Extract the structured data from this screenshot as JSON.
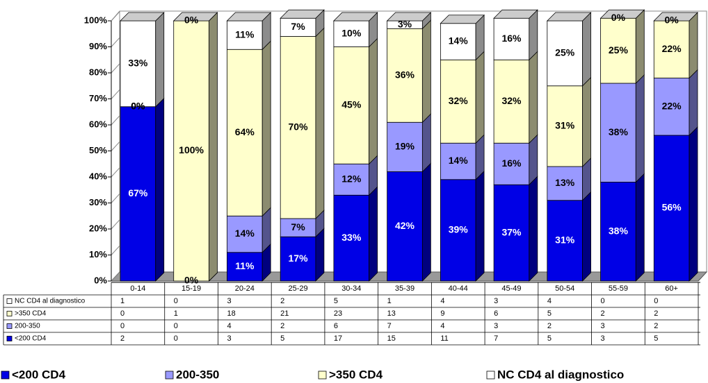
{
  "chart_data": {
    "type": "stacked_bar_3d",
    "categories": [
      "0-14",
      "15-19",
      "20-24",
      "25-29",
      "30-34",
      "35-39",
      "40-44",
      "45-49",
      "50-54",
      "55-59",
      "60+"
    ],
    "series": [
      {
        "name": "<200 CD4",
        "color": "#0000e6",
        "values": [
          67,
          0,
          11,
          17,
          33,
          42,
          39,
          37,
          31,
          38,
          56
        ],
        "value_labels": [
          "67%",
          "0%",
          "11%",
          "17%",
          "33%",
          "42%",
          "39%",
          "37%",
          "31%",
          "38%",
          "56%"
        ]
      },
      {
        "name": "200-350",
        "color": "#9999ff",
        "values": [
          0,
          0,
          14,
          7,
          12,
          19,
          14,
          16,
          13,
          38,
          22
        ],
        "value_labels": [
          "0%",
          "0%",
          "14%",
          "7%",
          "12%",
          "19%",
          "14%",
          "16%",
          "13%",
          "38%",
          "22%"
        ]
      },
      {
        "name": ">350 CD4",
        "color": "#ffffcc",
        "values": [
          0,
          100,
          64,
          70,
          45,
          36,
          32,
          32,
          31,
          25,
          22
        ],
        "value_labels": [
          "0%",
          "100%",
          "64%",
          "70%",
          "45%",
          "36%",
          "32%",
          "32%",
          "31%",
          "25%",
          "22%"
        ]
      },
      {
        "name": "NC CD4 al diagnostico",
        "color": "#ffffff",
        "values": [
          33,
          0,
          11,
          7,
          10,
          3,
          14,
          16,
          25,
          0,
          0
        ],
        "value_labels": [
          "33%",
          "0%",
          "11%",
          "7%",
          "10%",
          "3%",
          "14%",
          "16%",
          "25%",
          "0%",
          "0%"
        ]
      }
    ],
    "ylim": [
      0,
      100
    ],
    "yticks": [
      {
        "value": 0,
        "label": "0%"
      },
      {
        "value": 10,
        "label": "10%"
      },
      {
        "value": 20,
        "label": "20%"
      },
      {
        "value": 30,
        "label": "30%"
      },
      {
        "value": 40,
        "label": "40%"
      },
      {
        "value": 50,
        "label": "50%"
      },
      {
        "value": 60,
        "label": "60%"
      },
      {
        "value": 70,
        "label": "70%"
      },
      {
        "value": 80,
        "label": "80%"
      },
      {
        "value": 90,
        "label": "90%"
      },
      {
        "value": 100,
        "label": "100%"
      }
    ],
    "table": {
      "rows": [
        {
          "series": 3,
          "values": [
            1,
            0,
            3,
            2,
            5,
            1,
            4,
            3,
            4,
            0,
            0
          ]
        },
        {
          "series": 2,
          "values": [
            0,
            1,
            18,
            21,
            23,
            13,
            9,
            6,
            5,
            2,
            2
          ]
        },
        {
          "series": 1,
          "values": [
            0,
            0,
            4,
            2,
            6,
            7,
            4,
            3,
            2,
            3,
            2
          ]
        },
        {
          "series": 0,
          "values": [
            2,
            0,
            3,
            5,
            17,
            15,
            11,
            7,
            5,
            3,
            5
          ]
        }
      ]
    }
  }
}
